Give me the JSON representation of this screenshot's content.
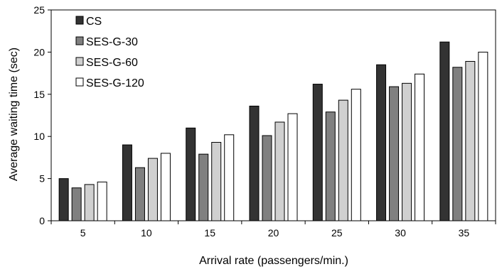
{
  "chart_data": {
    "type": "bar",
    "title": "",
    "xlabel": "Arrival rate (passengers/min.)",
    "ylabel": "Average waiting time (sec)",
    "categories": [
      "5",
      "10",
      "15",
      "20",
      "25",
      "30",
      "35"
    ],
    "ylim": [
      0,
      25
    ],
    "yticks": [
      "0",
      "5",
      "10",
      "15",
      "20",
      "25"
    ],
    "grid": false,
    "legend_position": "top-left",
    "series": [
      {
        "name": "CS",
        "color": "#333333",
        "values": [
          5.0,
          9.0,
          11.0,
          13.6,
          16.2,
          18.5,
          21.2
        ]
      },
      {
        "name": "SES-G-30",
        "color": "#808080",
        "values": [
          3.9,
          6.3,
          7.9,
          10.1,
          12.9,
          15.9,
          18.2
        ]
      },
      {
        "name": "SES-G-60",
        "color": "#d0d0d0",
        "values": [
          4.3,
          7.4,
          9.3,
          11.7,
          14.3,
          16.3,
          18.9
        ]
      },
      {
        "name": "SES-G-120",
        "color": "#ffffff",
        "values": [
          4.6,
          8.0,
          10.2,
          12.7,
          15.6,
          17.4,
          20.0
        ]
      }
    ]
  }
}
